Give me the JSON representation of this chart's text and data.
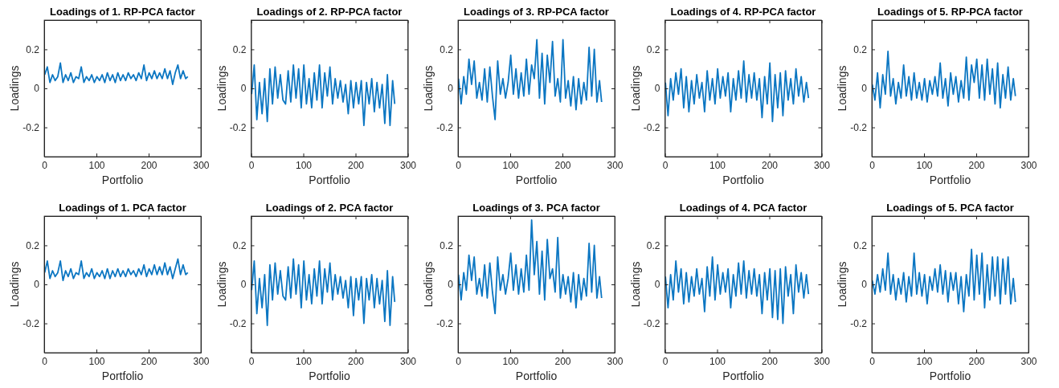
{
  "chart_data": [
    {
      "type": "line",
      "title": "Loadings of 1. RP-PCA factor",
      "xlabel": "Portfolio",
      "ylabel": "Loadings",
      "xlim": [
        0,
        300
      ],
      "ylim": [
        -0.35,
        0.35
      ],
      "xticks": [
        0,
        100,
        200,
        300
      ],
      "yticks": [
        -0.2,
        0,
        0.2
      ],
      "x": [
        1,
        6,
        11,
        16,
        21,
        26,
        31,
        36,
        41,
        46,
        51,
        56,
        61,
        66,
        71,
        76,
        81,
        86,
        91,
        96,
        101,
        106,
        111,
        116,
        121,
        126,
        131,
        136,
        141,
        146,
        151,
        156,
        161,
        166,
        171,
        176,
        181,
        186,
        191,
        196,
        201,
        206,
        211,
        216,
        221,
        226,
        231,
        236,
        241,
        246,
        251,
        256,
        261,
        266,
        271,
        275
      ],
      "series": [
        {
          "color": "#0b76c2",
          "values": [
            0.07,
            0.11,
            0.03,
            0.07,
            0.04,
            0.06,
            0.13,
            0.03,
            0.07,
            0.04,
            0.08,
            0.03,
            0.06,
            0.05,
            0.11,
            0.03,
            0.06,
            0.04,
            0.07,
            0.03,
            0.06,
            0.04,
            0.07,
            0.03,
            0.08,
            0.04,
            0.07,
            0.03,
            0.08,
            0.04,
            0.07,
            0.04,
            0.08,
            0.05,
            0.07,
            0.04,
            0.08,
            0.05,
            0.12,
            0.04,
            0.08,
            0.05,
            0.09,
            0.05,
            0.08,
            0.05,
            0.1,
            0.05,
            0.09,
            0.02,
            0.08,
            0.12,
            0.05,
            0.09,
            0.05,
            0.06
          ]
        }
      ]
    },
    {
      "type": "line",
      "title": "Loadings of 2. RP-PCA factor",
      "xlabel": "Portfolio",
      "ylabel": "Loadings",
      "xlim": [
        0,
        300
      ],
      "ylim": [
        -0.35,
        0.35
      ],
      "xticks": [
        0,
        100,
        200,
        300
      ],
      "yticks": [
        -0.2,
        0,
        0.2
      ],
      "x": [
        1,
        6,
        11,
        16,
        21,
        26,
        31,
        36,
        41,
        46,
        51,
        56,
        61,
        66,
        71,
        76,
        81,
        86,
        91,
        96,
        101,
        106,
        111,
        116,
        121,
        126,
        131,
        136,
        141,
        146,
        151,
        156,
        161,
        166,
        171,
        176,
        181,
        186,
        191,
        196,
        201,
        206,
        211,
        216,
        221,
        226,
        231,
        236,
        241,
        246,
        251,
        256,
        261,
        266,
        271,
        275
      ],
      "series": [
        {
          "color": "#0b76c2",
          "values": [
            -0.03,
            0.12,
            -0.16,
            0.03,
            -0.13,
            0.05,
            -0.17,
            0.1,
            -0.08,
            0.11,
            -0.05,
            0.07,
            -0.06,
            -0.08,
            0.09,
            -0.07,
            0.12,
            -0.05,
            0.1,
            -0.1,
            0.12,
            -0.08,
            0.05,
            -0.1,
            0.08,
            -0.06,
            0.12,
            -0.1,
            0.08,
            -0.04,
            0.11,
            -0.08,
            0.05,
            -0.05,
            0.04,
            -0.07,
            0.02,
            -0.13,
            0.04,
            -0.1,
            0.03,
            -0.08,
            0.04,
            -0.19,
            0.03,
            -0.08,
            0.05,
            -0.12,
            0.03,
            -0.1,
            0.02,
            -0.18,
            0.07,
            -0.19,
            0.04,
            -0.08
          ]
        }
      ]
    },
    {
      "type": "line",
      "title": "Loadings of 3. RP-PCA factor",
      "xlabel": "Portfolio",
      "ylabel": "Loadings",
      "xlim": [
        0,
        300
      ],
      "ylim": [
        -0.35,
        0.35
      ],
      "xticks": [
        0,
        100,
        200,
        300
      ],
      "yticks": [
        -0.2,
        0,
        0.2
      ],
      "x": [
        1,
        6,
        11,
        16,
        21,
        26,
        31,
        36,
        41,
        46,
        51,
        56,
        61,
        66,
        71,
        76,
        81,
        86,
        91,
        96,
        101,
        106,
        111,
        116,
        121,
        126,
        131,
        136,
        141,
        146,
        151,
        156,
        161,
        166,
        171,
        176,
        181,
        186,
        191,
        196,
        201,
        206,
        211,
        216,
        221,
        226,
        231,
        236,
        241,
        246,
        251,
        256,
        261,
        266,
        271,
        275
      ],
      "series": [
        {
          "color": "#0b76c2",
          "values": [
            0.05,
            -0.08,
            0.06,
            -0.03,
            0.15,
            0.02,
            0.14,
            -0.05,
            0.03,
            -0.06,
            0.1,
            -0.07,
            0.11,
            -0.04,
            -0.16,
            0.14,
            -0.03,
            0.05,
            -0.05,
            0.03,
            0.17,
            -0.03,
            0.1,
            -0.05,
            0.08,
            -0.04,
            0.15,
            -0.03,
            0.12,
            0.05,
            0.25,
            -0.05,
            0.18,
            -0.08,
            0.17,
            0.03,
            0.24,
            -0.04,
            0.05,
            -0.07,
            0.25,
            -0.05,
            0.04,
            -0.09,
            0.06,
            -0.11,
            0.05,
            -0.08,
            0.03,
            -0.06,
            0.21,
            -0.04,
            0.2,
            -0.07,
            0.04,
            -0.07
          ]
        }
      ]
    },
    {
      "type": "line",
      "title": "Loadings of 4. RP-PCA factor",
      "xlabel": "Portfolio",
      "ylabel": "Loadings",
      "xlim": [
        0,
        300
      ],
      "ylim": [
        -0.35,
        0.35
      ],
      "xticks": [
        0,
        100,
        200,
        300
      ],
      "yticks": [
        -0.2,
        0,
        0.2
      ],
      "x": [
        1,
        6,
        11,
        16,
        21,
        26,
        31,
        36,
        41,
        46,
        51,
        56,
        61,
        66,
        71,
        76,
        81,
        86,
        91,
        96,
        101,
        106,
        111,
        116,
        121,
        126,
        131,
        136,
        141,
        146,
        151,
        156,
        161,
        166,
        171,
        176,
        181,
        186,
        191,
        196,
        201,
        206,
        211,
        216,
        221,
        226,
        231,
        236,
        241,
        246,
        251,
        256,
        261,
        266,
        271,
        275
      ],
      "series": [
        {
          "color": "#0b76c2",
          "values": [
            0.03,
            -0.14,
            0.05,
            -0.06,
            0.08,
            -0.03,
            0.1,
            -0.1,
            0.06,
            -0.12,
            0.04,
            -0.08,
            0.07,
            -0.05,
            0.03,
            -0.12,
            0.09,
            -0.06,
            0.05,
            -0.08,
            0.1,
            -0.05,
            0.06,
            -0.04,
            0.08,
            -0.12,
            0.05,
            -0.06,
            0.09,
            -0.05,
            0.14,
            -0.07,
            0.07,
            -0.05,
            0.08,
            -0.06,
            0.05,
            -0.15,
            0.06,
            -0.08,
            0.13,
            -0.17,
            0.07,
            -0.1,
            0.08,
            -0.14,
            0.09,
            -0.06,
            0.05,
            -0.08,
            0.1,
            -0.04,
            0.06,
            -0.07,
            0.03,
            -0.05
          ]
        }
      ]
    },
    {
      "type": "line",
      "title": "Loadings of 5. RP-PCA factor",
      "xlabel": "Portfolio",
      "ylabel": "Loadings",
      "xlim": [
        0,
        300
      ],
      "ylim": [
        -0.35,
        0.35
      ],
      "xticks": [
        0,
        100,
        200,
        300
      ],
      "yticks": [
        -0.2,
        0,
        0.2
      ],
      "x": [
        1,
        6,
        11,
        16,
        21,
        26,
        31,
        36,
        41,
        46,
        51,
        56,
        61,
        66,
        71,
        76,
        81,
        86,
        91,
        96,
        101,
        106,
        111,
        116,
        121,
        126,
        131,
        136,
        141,
        146,
        151,
        156,
        161,
        166,
        171,
        176,
        181,
        186,
        191,
        196,
        201,
        206,
        211,
        216,
        221,
        226,
        231,
        236,
        241,
        246,
        251,
        256,
        261,
        266,
        271,
        275
      ],
      "series": [
        {
          "color": "#0b76c2",
          "values": [
            0.02,
            -0.06,
            0.08,
            -0.1,
            0.07,
            -0.03,
            0.19,
            -0.04,
            0.05,
            -0.08,
            0.03,
            -0.05,
            0.12,
            -0.04,
            0.06,
            -0.06,
            0.08,
            -0.05,
            0.03,
            -0.06,
            0.05,
            -0.07,
            0.04,
            -0.03,
            0.06,
            -0.04,
            0.13,
            -0.05,
            0.05,
            -0.09,
            0.08,
            -0.03,
            0.06,
            -0.07,
            0.04,
            -0.05,
            0.16,
            -0.06,
            0.12,
            0.03,
            0.15,
            -0.05,
            0.12,
            -0.06,
            0.15,
            -0.03,
            0.1,
            -0.08,
            0.13,
            -0.1,
            0.07,
            -0.05,
            0.11,
            -0.06,
            0.05,
            -0.04
          ]
        }
      ]
    },
    {
      "type": "line",
      "title": "Loadings of 1. PCA factor",
      "xlabel": "Portfolio",
      "ylabel": "Loadings",
      "xlim": [
        0,
        300
      ],
      "ylim": [
        -0.35,
        0.35
      ],
      "xticks": [
        0,
        100,
        200,
        300
      ],
      "yticks": [
        -0.2,
        0,
        0.2
      ],
      "x": [
        1,
        6,
        11,
        16,
        21,
        26,
        31,
        36,
        41,
        46,
        51,
        56,
        61,
        66,
        71,
        76,
        81,
        86,
        91,
        96,
        101,
        106,
        111,
        116,
        121,
        126,
        131,
        136,
        141,
        146,
        151,
        156,
        161,
        166,
        171,
        176,
        181,
        186,
        191,
        196,
        201,
        206,
        211,
        216,
        221,
        226,
        231,
        236,
        241,
        246,
        251,
        256,
        261,
        266,
        271,
        275
      ],
      "series": [
        {
          "color": "#0b76c2",
          "values": [
            0.06,
            0.12,
            0.03,
            0.07,
            0.04,
            0.06,
            0.12,
            0.02,
            0.07,
            0.04,
            0.08,
            0.03,
            0.06,
            0.05,
            0.12,
            0.03,
            0.06,
            0.04,
            0.08,
            0.03,
            0.06,
            0.04,
            0.07,
            0.03,
            0.08,
            0.03,
            0.07,
            0.04,
            0.08,
            0.04,
            0.07,
            0.04,
            0.08,
            0.05,
            0.07,
            0.04,
            0.08,
            0.05,
            0.1,
            0.04,
            0.08,
            0.05,
            0.1,
            0.05,
            0.09,
            0.05,
            0.11,
            0.05,
            0.09,
            0.03,
            0.08,
            0.13,
            0.05,
            0.1,
            0.05,
            0.06
          ]
        }
      ]
    },
    {
      "type": "line",
      "title": "Loadings of 2. PCA factor",
      "xlabel": "Portfolio",
      "ylabel": "Loadings",
      "xlim": [
        0,
        300
      ],
      "ylim": [
        -0.35,
        0.35
      ],
      "xticks": [
        0,
        100,
        200,
        300
      ],
      "yticks": [
        -0.2,
        0,
        0.2
      ],
      "x": [
        1,
        6,
        11,
        16,
        21,
        26,
        31,
        36,
        41,
        46,
        51,
        56,
        61,
        66,
        71,
        76,
        81,
        86,
        91,
        96,
        101,
        106,
        111,
        116,
        121,
        126,
        131,
        136,
        141,
        146,
        151,
        156,
        161,
        166,
        171,
        176,
        181,
        186,
        191,
        196,
        201,
        206,
        211,
        216,
        221,
        226,
        231,
        236,
        241,
        246,
        251,
        256,
        261,
        266,
        271,
        275
      ],
      "series": [
        {
          "color": "#0b76c2",
          "values": [
            -0.03,
            0.12,
            -0.15,
            0.03,
            -0.12,
            0.05,
            -0.21,
            0.1,
            -0.08,
            0.11,
            -0.05,
            0.07,
            -0.06,
            -0.08,
            0.09,
            -0.07,
            0.13,
            -0.05,
            0.1,
            -0.12,
            0.12,
            -0.08,
            0.05,
            -0.1,
            0.08,
            -0.06,
            0.12,
            -0.1,
            0.08,
            -0.04,
            0.11,
            -0.08,
            0.05,
            -0.05,
            0.04,
            -0.07,
            0.02,
            -0.12,
            0.04,
            -0.16,
            0.03,
            -0.08,
            0.04,
            -0.2,
            0.03,
            -0.08,
            0.05,
            -0.12,
            0.03,
            -0.1,
            0.02,
            -0.19,
            0.07,
            -0.21,
            0.04,
            -0.09
          ]
        }
      ]
    },
    {
      "type": "line",
      "title": "Loadings of 3. PCA factor",
      "xlabel": "Portfolio",
      "ylabel": "Loadings",
      "xlim": [
        0,
        300
      ],
      "ylim": [
        -0.35,
        0.35
      ],
      "xticks": [
        0,
        100,
        200,
        300
      ],
      "yticks": [
        -0.2,
        0,
        0.2
      ],
      "x": [
        1,
        6,
        11,
        16,
        21,
        26,
        31,
        36,
        41,
        46,
        51,
        56,
        61,
        66,
        71,
        76,
        81,
        86,
        91,
        96,
        101,
        106,
        111,
        116,
        121,
        126,
        131,
        136,
        141,
        146,
        151,
        156,
        161,
        166,
        171,
        176,
        181,
        186,
        191,
        196,
        201,
        206,
        211,
        216,
        221,
        226,
        231,
        236,
        241,
        246,
        251,
        256,
        261,
        266,
        271,
        275
      ],
      "series": [
        {
          "color": "#0b76c2",
          "values": [
            0.05,
            -0.08,
            0.06,
            -0.03,
            0.15,
            0.02,
            0.14,
            -0.05,
            0.03,
            -0.06,
            0.1,
            -0.07,
            0.11,
            -0.04,
            -0.15,
            0.14,
            -0.03,
            0.05,
            -0.05,
            0.03,
            0.16,
            -0.03,
            0.1,
            -0.05,
            0.08,
            -0.04,
            0.15,
            -0.03,
            0.33,
            0.05,
            0.22,
            -0.05,
            0.17,
            -0.08,
            0.23,
            0.03,
            0.08,
            -0.04,
            0.24,
            -0.07,
            0.05,
            -0.05,
            0.04,
            -0.09,
            0.06,
            -0.12,
            0.05,
            -0.08,
            0.03,
            -0.06,
            0.21,
            -0.04,
            0.2,
            -0.07,
            0.04,
            -0.07
          ]
        }
      ]
    },
    {
      "type": "line",
      "title": "Loadings of 4. PCA factor",
      "xlabel": "Portfolio",
      "ylabel": "Loadings",
      "xlim": [
        0,
        300
      ],
      "ylim": [
        -0.35,
        0.35
      ],
      "xticks": [
        0,
        100,
        200,
        300
      ],
      "yticks": [
        -0.2,
        0,
        0.2
      ],
      "x": [
        1,
        6,
        11,
        16,
        21,
        26,
        31,
        36,
        41,
        46,
        51,
        56,
        61,
        66,
        71,
        76,
        81,
        86,
        91,
        96,
        101,
        106,
        111,
        116,
        121,
        126,
        131,
        136,
        141,
        146,
        151,
        156,
        161,
        166,
        171,
        176,
        181,
        186,
        191,
        196,
        201,
        206,
        211,
        216,
        221,
        226,
        231,
        236,
        241,
        246,
        251,
        256,
        261,
        266,
        271,
        275
      ],
      "series": [
        {
          "color": "#0b76c2",
          "values": [
            0.04,
            -0.12,
            0.05,
            -0.08,
            0.12,
            -0.04,
            0.08,
            -0.1,
            0.06,
            -0.09,
            0.04,
            -0.06,
            0.08,
            -0.05,
            0.03,
            -0.14,
            0.09,
            -0.06,
            0.14,
            -0.08,
            0.1,
            -0.05,
            0.06,
            -0.04,
            0.08,
            -0.12,
            0.05,
            -0.06,
            0.11,
            -0.05,
            0.12,
            -0.07,
            0.07,
            -0.05,
            0.08,
            -0.06,
            0.05,
            -0.15,
            0.06,
            -0.08,
            0.08,
            -0.17,
            0.07,
            -0.18,
            0.08,
            -0.2,
            0.09,
            -0.06,
            0.05,
            -0.15,
            0.1,
            -0.04,
            0.06,
            -0.07,
            0.05,
            -0.05
          ]
        }
      ]
    },
    {
      "type": "line",
      "title": "Loadings of 5. PCA factor",
      "xlabel": "Portfolio",
      "ylabel": "Loadings",
      "xlim": [
        0,
        300
      ],
      "ylim": [
        -0.35,
        0.35
      ],
      "xticks": [
        0,
        100,
        200,
        300
      ],
      "yticks": [
        -0.2,
        0,
        0.2
      ],
      "x": [
        1,
        6,
        11,
        16,
        21,
        26,
        31,
        36,
        41,
        46,
        51,
        56,
        61,
        66,
        71,
        76,
        81,
        86,
        91,
        96,
        101,
        106,
        111,
        116,
        121,
        126,
        131,
        136,
        141,
        146,
        151,
        156,
        161,
        166,
        171,
        176,
        181,
        186,
        191,
        196,
        201,
        206,
        211,
        216,
        221,
        226,
        231,
        236,
        241,
        246,
        251,
        256,
        261,
        266,
        271,
        275
      ],
      "series": [
        {
          "color": "#0b76c2",
          "values": [
            0.02,
            -0.05,
            0.05,
            -0.04,
            0.08,
            -0.03,
            0.16,
            -0.05,
            0.05,
            -0.08,
            0.03,
            -0.05,
            0.06,
            -0.09,
            0.04,
            -0.06,
            0.16,
            -0.05,
            0.06,
            -0.06,
            0.05,
            -0.1,
            0.04,
            -0.03,
            0.08,
            -0.04,
            0.1,
            -0.05,
            0.07,
            -0.09,
            0.06,
            -0.03,
            0.06,
            -0.1,
            0.04,
            -0.14,
            0.05,
            -0.06,
            0.18,
            -0.08,
            0.15,
            -0.05,
            0.16,
            -0.12,
            0.1,
            -0.08,
            0.14,
            -0.06,
            0.14,
            -0.1,
            0.13,
            -0.05,
            0.14,
            -0.1,
            0.03,
            -0.09
          ]
        }
      ]
    }
  ]
}
